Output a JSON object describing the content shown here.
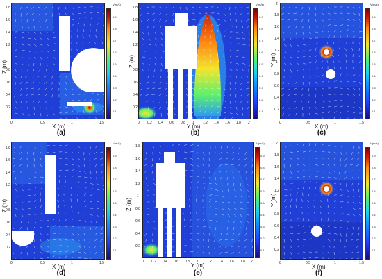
{
  "panels": [
    {
      "id": "a",
      "caption": "(a)",
      "xlabel": "X (m)",
      "ylabel": "Z (m)",
      "cbar_label": "V(m/s)",
      "x_ticks": [
        "0",
        "0.5",
        "1",
        "1.5"
      ],
      "y_ticks": [
        "0.2",
        "0.4",
        "0.6",
        "0.8",
        "1",
        "1.2",
        "1.4",
        "1.6",
        "1.8"
      ],
      "cbar_ticks": [
        "0.9",
        "0.8",
        "0.7",
        "0.6",
        "0.5",
        "0.4",
        "0.3",
        "0.2",
        "0.1"
      ]
    },
    {
      "id": "b",
      "caption": "(b)",
      "xlabel": "Y (m)",
      "ylabel": "Z (m)",
      "cbar_label": "V(m/s)",
      "x_ticks": [
        "0",
        "0.2",
        "0.4",
        "0.6",
        "0.8",
        "1",
        "1.2",
        "1.4",
        "1.6",
        "1.8",
        "2"
      ],
      "y_ticks": [
        "0.2",
        "0.4",
        "0.6",
        "0.8",
        "1",
        "1.2",
        "1.4",
        "1.6",
        "1.8"
      ],
      "cbar_ticks": [
        "0.9",
        "0.8",
        "0.7",
        "0.6",
        "0.5",
        "0.4",
        "0.3",
        "0.2",
        "0.1"
      ]
    },
    {
      "id": "c",
      "caption": "(c)",
      "xlabel": "X (m)",
      "ylabel": "Y (m)",
      "cbar_label": "V(m/s)",
      "x_ticks": [
        "0",
        "0.5",
        "1",
        "1.5"
      ],
      "y_ticks": [
        "0.2",
        "0.4",
        "0.6",
        "0.8",
        "1",
        "1.2",
        "1.4",
        "1.6",
        "1.8",
        "2"
      ],
      "cbar_ticks": [
        "0.9",
        "0.8",
        "0.7",
        "0.6",
        "0.5",
        "0.4",
        "0.3",
        "0.2",
        "0.1"
      ]
    },
    {
      "id": "d",
      "caption": "(d)",
      "xlabel": "X (m)",
      "ylabel": "Z (m)",
      "cbar_label": "V(m/s)",
      "x_ticks": [
        "0",
        "0.5",
        "1",
        "1.5"
      ],
      "y_ticks": [
        "0.2",
        "0.4",
        "0.6",
        "0.8",
        "1",
        "1.2",
        "1.4",
        "1.6",
        "1.8"
      ],
      "cbar_ticks": [
        "0.9",
        "0.8",
        "0.7",
        "0.6",
        "0.5",
        "0.4",
        "0.3",
        "0.2",
        "0.1"
      ]
    },
    {
      "id": "e",
      "caption": "(e)",
      "xlabel": "Y (m)",
      "ylabel": "Z (m)",
      "cbar_label": "V(m/s)",
      "x_ticks": [
        "0",
        "0.2",
        "0.4",
        "0.6",
        "0.8",
        "1",
        "1.2",
        "1.4",
        "1.6",
        "1.8",
        "2"
      ],
      "y_ticks": [
        "0.2",
        "0.4",
        "0.6",
        "0.8",
        "1",
        "1.2",
        "1.4",
        "1.6",
        "1.8"
      ],
      "cbar_ticks": [
        "0.9",
        "0.8",
        "0.7",
        "0.6",
        "0.5",
        "0.4",
        "0.3",
        "0.2",
        "0.1"
      ]
    },
    {
      "id": "f",
      "caption": "(f)",
      "xlabel": "X (m)",
      "ylabel": "Y (m)",
      "cbar_label": "V(m/s)",
      "x_ticks": [
        "0",
        "0.5",
        "1",
        "1.5"
      ],
      "y_ticks": [
        "0.2",
        "0.4",
        "0.6",
        "0.8",
        "1",
        "1.2",
        "1.4",
        "1.6",
        "1.8",
        "2"
      ],
      "cbar_ticks": [
        "0.9",
        "0.8",
        "0.7",
        "0.6",
        "0.5",
        "0.4",
        "0.3",
        "0.2",
        "0.1"
      ]
    }
  ],
  "colors": {
    "field_base": "#1f3fd6",
    "field_low": "#1628a8",
    "field_mid": "#2f7df0",
    "field_high": "#cc1a07",
    "vector": "#ffffff"
  }
}
